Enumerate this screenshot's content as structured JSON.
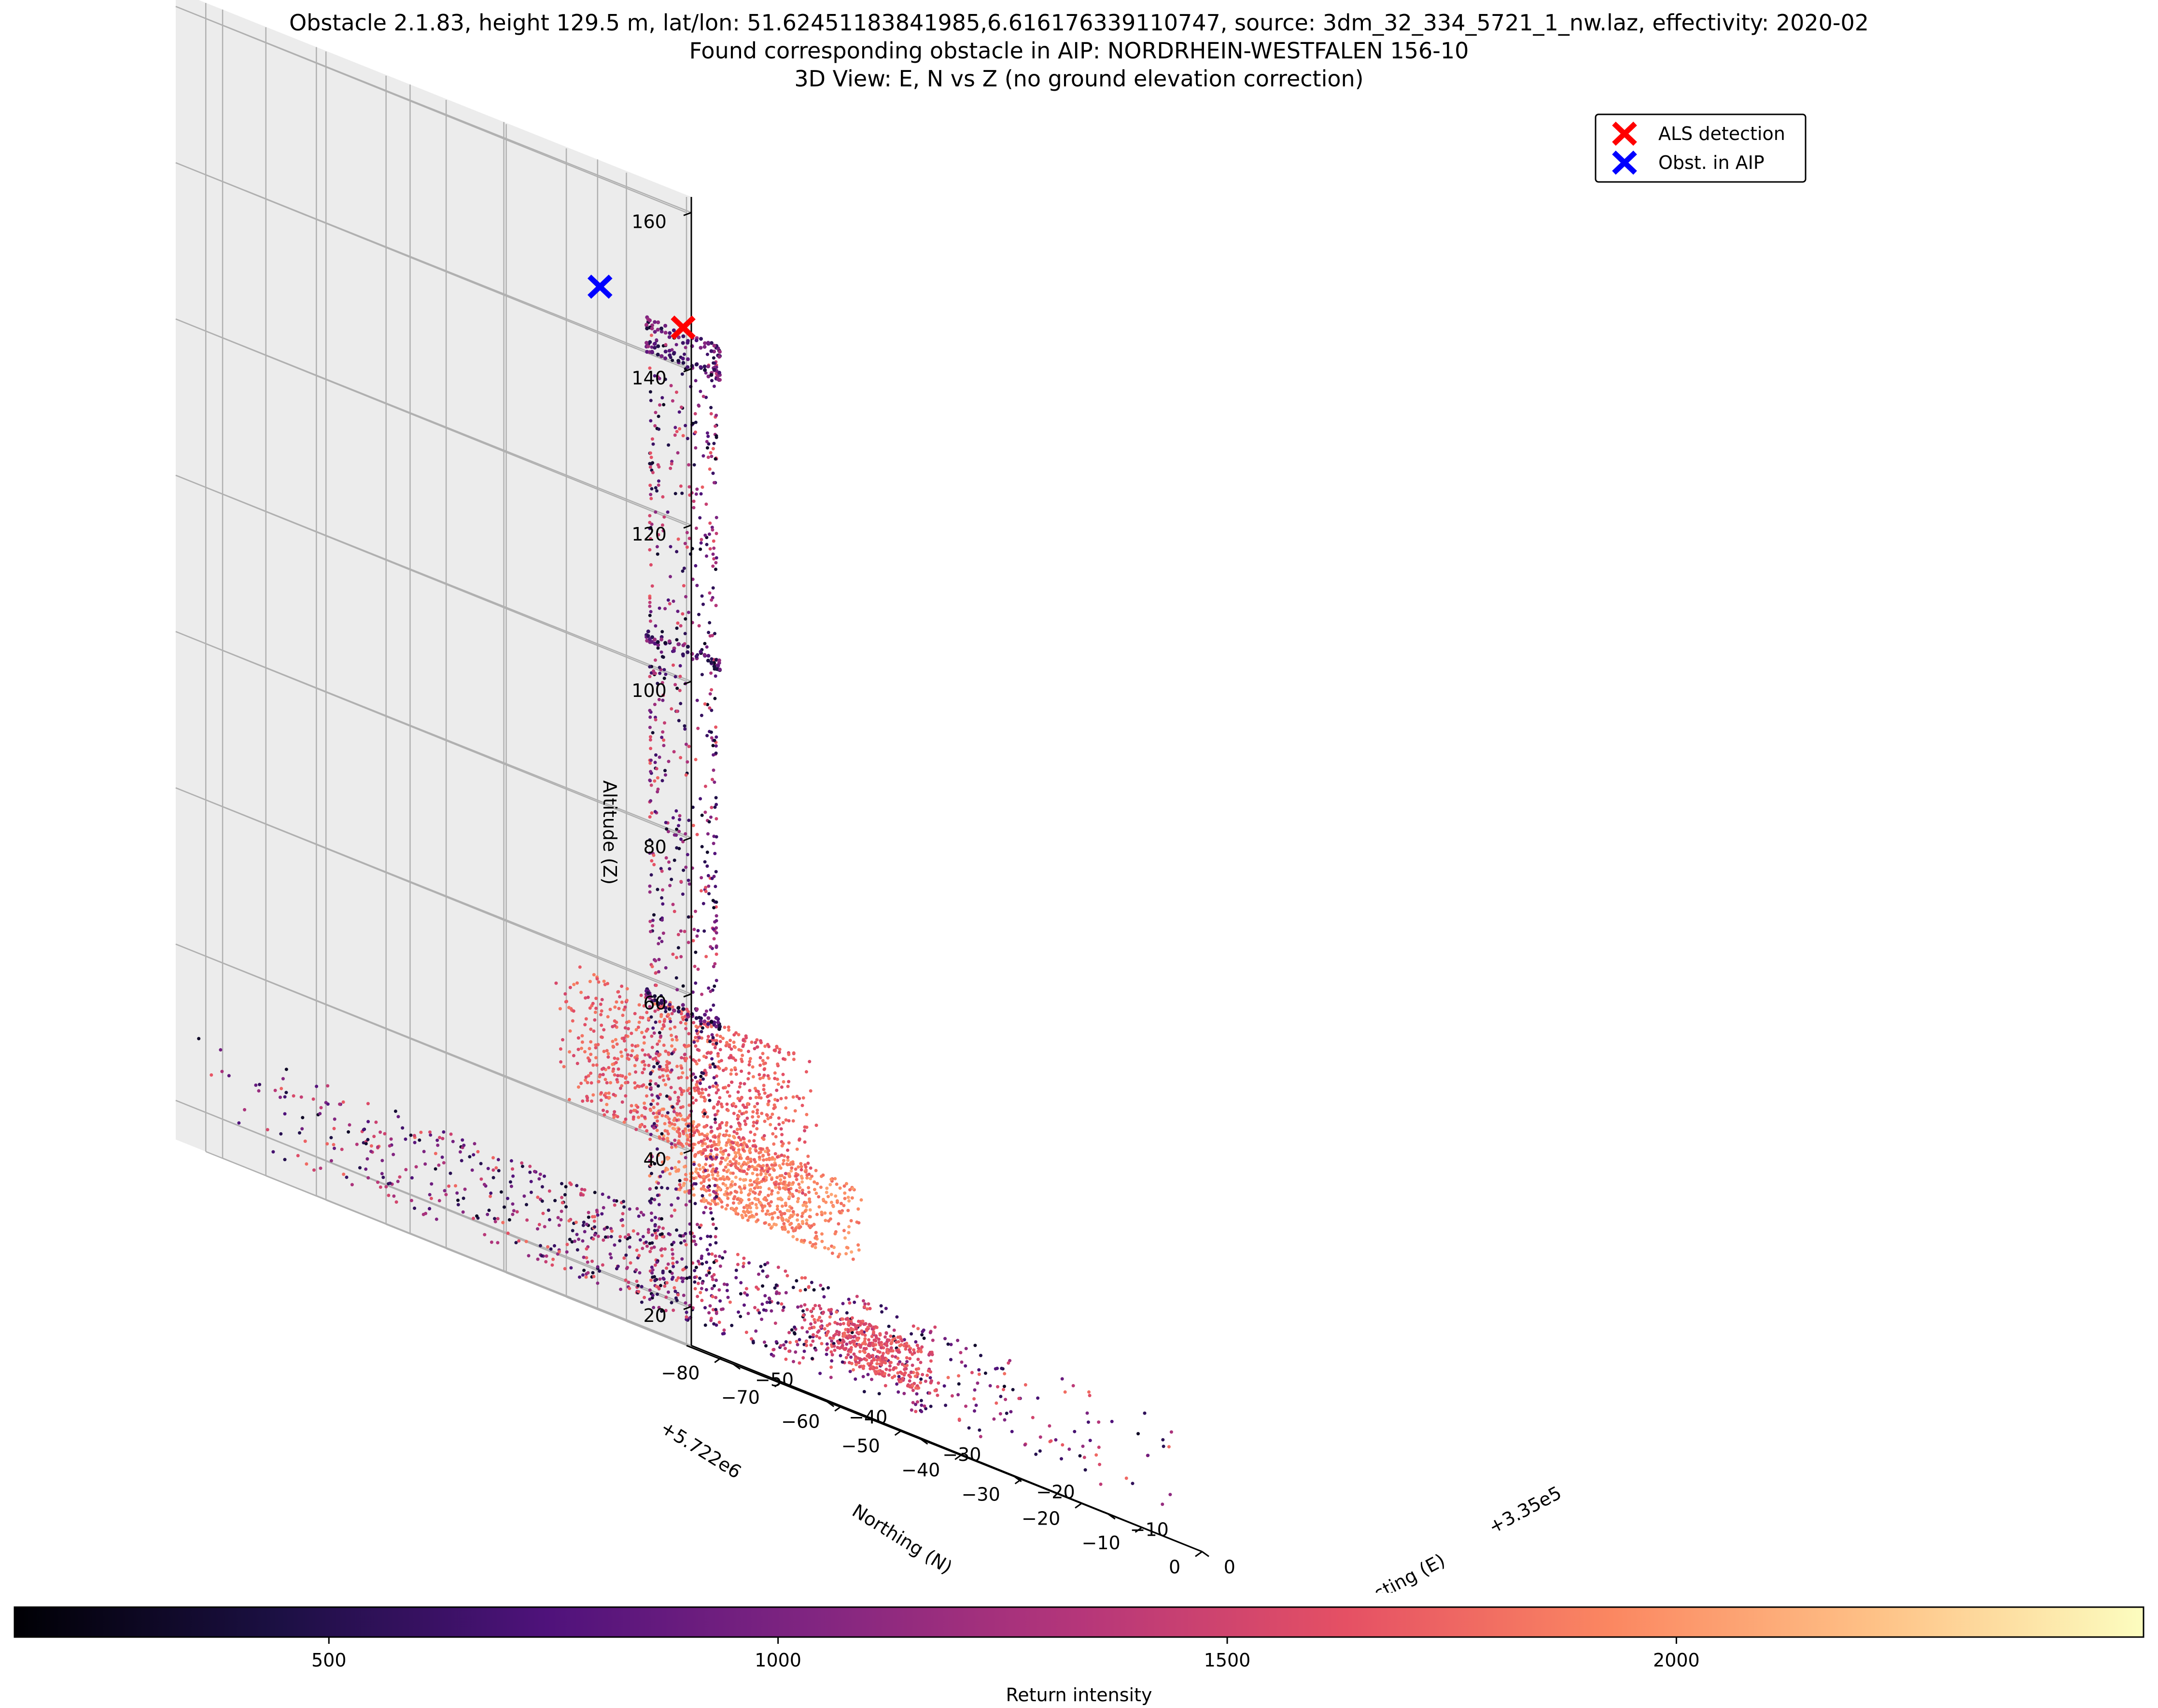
{
  "title": {
    "line1": "Obstacle 2.1.83, height 129.5 m, lat/lon: 51.62451183841985,6.616176339110747, source: 3dm_32_334_5721_1_nw.laz, effectivity: 2020-02",
    "line2": "Found corresponding obstacle in AIP: NORDRHEIN-WESTFALEN 156-10",
    "line3": "3D View: E, N vs Z (no ground elevation correction)"
  },
  "chart_data": {
    "type": "scatter",
    "projection": "3d",
    "xlabel": "Easting (E)",
    "ylabel": "Northing (N)",
    "zlabel": "Altitude (Z)",
    "x_offset_label": "+3.35e5",
    "y_offset_label": "+5.722e6",
    "x_ticks": [
      "0",
      "−10",
      "−20",
      "−30",
      "−40",
      "−50"
    ],
    "y_ticks": [
      "−80",
      "−70",
      "−60",
      "−50",
      "−40",
      "−30",
      "−20",
      "−10",
      "0"
    ],
    "z_ticks": [
      "20",
      "40",
      "60",
      "80",
      "100",
      "120",
      "140",
      "160"
    ],
    "colormap": "magma",
    "colorbar": {
      "label": "Return intensity",
      "ticks": [
        "500",
        "1000",
        "1500",
        "2000"
      ],
      "tick_values": [
        500,
        1000,
        1500,
        2000
      ],
      "range": [
        150,
        2520
      ]
    },
    "legend": {
      "position": "top-right",
      "entries": [
        {
          "name": "ALS detection",
          "color": "#ff0000",
          "marker": "x"
        },
        {
          "name": "Obst. in AIP",
          "color": "#0000ff",
          "marker": "x"
        }
      ]
    },
    "series": [
      {
        "name": "ALS detection",
        "marker": "x",
        "color": "#ff0000",
        "points": [
          {
            "x": -31,
            "y": -38,
            "z": 145
          }
        ]
      },
      {
        "name": "Obst. in AIP",
        "marker": "x",
        "color": "#0000ff",
        "points": [
          {
            "x": -45,
            "y": -30,
            "z": 146
          }
        ]
      }
    ],
    "point_cloud": {
      "description_objects": [
        {
          "object": "chimney",
          "x_range": [
            -34,
            -28
          ],
          "y_range": [
            -41,
            -35
          ],
          "z_range": [
            20,
            143
          ],
          "intensity_range": [
            300,
            1700
          ]
        },
        {
          "object": "long_roof",
          "x_range": [
            -55,
            -32
          ],
          "y_range": [
            -22,
            -14
          ],
          "z_range": [
            40,
            58
          ],
          "intensity": 1700
        },
        {
          "object": "left_roof",
          "x_range": [
            -20,
            -10
          ],
          "y_range": [
            -62,
            -40
          ],
          "z_range": [
            34,
            44
          ],
          "intensity": 1900
        },
        {
          "object": "low_roof",
          "x_range": [
            -15,
            -8
          ],
          "y_range": [
            -44,
            -30
          ],
          "z_range": [
            21,
            27
          ],
          "intensity": 1600
        },
        {
          "object": "trees",
          "x_range": [
            -55,
            0
          ],
          "y_range": [
            -85,
            0
          ],
          "z_range": [
            18,
            40
          ],
          "intensity_range": [
            300,
            1800
          ]
        }
      ]
    },
    "xlim": [
      0,
      -55
    ],
    "ylim": [
      -85,
      0
    ],
    "zlim": [
      15,
      162
    ],
    "grid": true
  }
}
